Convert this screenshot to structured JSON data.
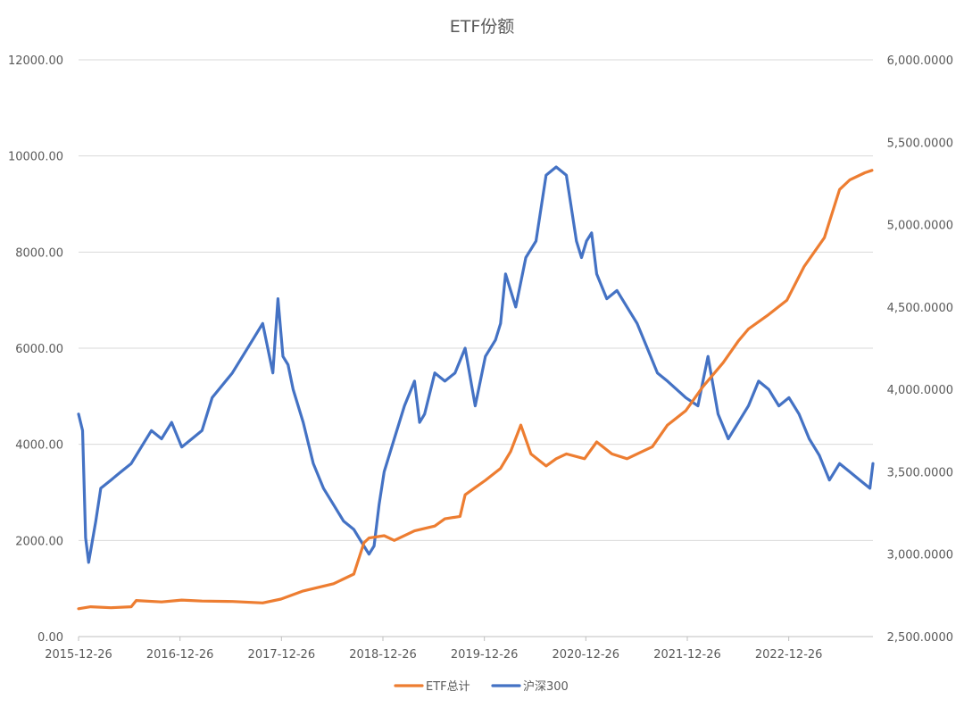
{
  "chart_data": {
    "type": "line",
    "title": "ETF份额",
    "x_tick_labels": [
      "2015-12-26",
      "2016-12-26",
      "2017-12-26",
      "2018-12-26",
      "2019-12-26",
      "2020-12-26",
      "2021-12-26",
      "2022-12-26"
    ],
    "x_range": [
      2015.98,
      2023.83
    ],
    "y_left": {
      "range": [
        0,
        12000
      ],
      "ticks": [
        "0.00",
        "2000.00",
        "4000.00",
        "6000.00",
        "8000.00",
        "10000.00",
        "12000.00"
      ]
    },
    "y_right": {
      "range": [
        2500,
        6000
      ],
      "ticks": [
        "2,500.0000",
        "3,000.0000",
        "3,500.0000",
        "4,000.0000",
        "4,500.0000",
        "5,000.0000",
        "5,500.0000",
        "6,000.0000"
      ]
    },
    "grid": true,
    "legend_position": "bottom",
    "colors": {
      "etf": "#ED7D31",
      "hs300": "#4472C4",
      "grid": "#D9D9D9",
      "text": "#595959"
    },
    "series": [
      {
        "name": "ETF总计",
        "axis": "left",
        "x": [
          2015.98,
          2016.1,
          2016.3,
          2016.5,
          2016.55,
          2016.8,
          2017.0,
          2017.2,
          2017.5,
          2017.8,
          2017.98,
          2018.2,
          2018.5,
          2018.7,
          2018.8,
          2018.85,
          2019.0,
          2019.1,
          2019.3,
          2019.5,
          2019.6,
          2019.75,
          2019.8,
          2019.9,
          2020.0,
          2020.15,
          2020.25,
          2020.35,
          2020.45,
          2020.6,
          2020.7,
          2020.8,
          2020.98,
          2021.1,
          2021.25,
          2021.4,
          2021.5,
          2021.65,
          2021.8,
          2021.98,
          2022.15,
          2022.35,
          2022.5,
          2022.6,
          2022.8,
          2022.98,
          2023.15,
          2023.35,
          2023.5,
          2023.6,
          2023.75,
          2023.82
        ],
        "y": [
          580,
          620,
          600,
          620,
          750,
          720,
          760,
          740,
          730,
          700,
          780,
          950,
          1100,
          1300,
          1950,
          2050,
          2100,
          2000,
          2200,
          2300,
          2450,
          2500,
          2950,
          3100,
          3250,
          3500,
          3850,
          4400,
          3800,
          3550,
          3700,
          3800,
          3700,
          4050,
          3800,
          3700,
          3800,
          3950,
          4400,
          4700,
          5200,
          5700,
          6150,
          6400,
          6700,
          7000,
          7700,
          8300,
          9300,
          9500,
          9650,
          9700
        ]
      },
      {
        "name": "沪深300",
        "axis": "right",
        "x": [
          2015.98,
          2016.02,
          2016.05,
          2016.08,
          2016.15,
          2016.2,
          2016.3,
          2016.4,
          2016.5,
          2016.6,
          2016.7,
          2016.8,
          2016.9,
          2017.0,
          2017.1,
          2017.2,
          2017.3,
          2017.5,
          2017.6,
          2017.7,
          2017.8,
          2017.9,
          2017.95,
          2018.0,
          2018.05,
          2018.1,
          2018.2,
          2018.3,
          2018.4,
          2018.5,
          2018.6,
          2018.7,
          2018.8,
          2018.85,
          2018.9,
          2018.95,
          2019.0,
          2019.1,
          2019.2,
          2019.3,
          2019.35,
          2019.4,
          2019.5,
          2019.6,
          2019.7,
          2019.8,
          2019.9,
          2019.95,
          2020.0,
          2020.1,
          2020.15,
          2020.2,
          2020.3,
          2020.4,
          2020.5,
          2020.6,
          2020.7,
          2020.8,
          2020.9,
          2020.95,
          2021.0,
          2021.05,
          2021.1,
          2021.2,
          2021.3,
          2021.4,
          2021.5,
          2021.6,
          2021.7,
          2021.8,
          2021.98,
          2022.1,
          2022.2,
          2022.3,
          2022.4,
          2022.5,
          2022.6,
          2022.7,
          2022.8,
          2022.85,
          2022.9,
          2023.0,
          2023.1,
          2023.2,
          2023.3,
          2023.4,
          2023.5,
          2023.6,
          2023.7,
          2023.8,
          2023.83
        ],
        "y": [
          3850,
          3750,
          3100,
          2950,
          3200,
          3400,
          3450,
          3500,
          3550,
          3650,
          3750,
          3700,
          3800,
          3650,
          3700,
          3750,
          3950,
          4100,
          4200,
          4300,
          4400,
          4100,
          4550,
          4200,
          4150,
          4000,
          3800,
          3550,
          3400,
          3300,
          3200,
          3150,
          3050,
          3000,
          3050,
          3300,
          3500,
          3700,
          3900,
          4050,
          3800,
          3850,
          4100,
          4050,
          4100,
          4250,
          3900,
          4050,
          4200,
          4300,
          4400,
          4700,
          4500,
          4800,
          4900,
          5300,
          5350,
          5300,
          4900,
          4800,
          4900,
          4950,
          4700,
          4550,
          4600,
          4500,
          4400,
          4250,
          4100,
          4050,
          3950,
          3900,
          4200,
          3850,
          3700,
          3800,
          3900,
          4050,
          4000,
          3950,
          3900,
          3950,
          3850,
          3700,
          3600,
          3450,
          3550,
          3500,
          3450,
          3400,
          3550
        ]
      }
    ]
  }
}
